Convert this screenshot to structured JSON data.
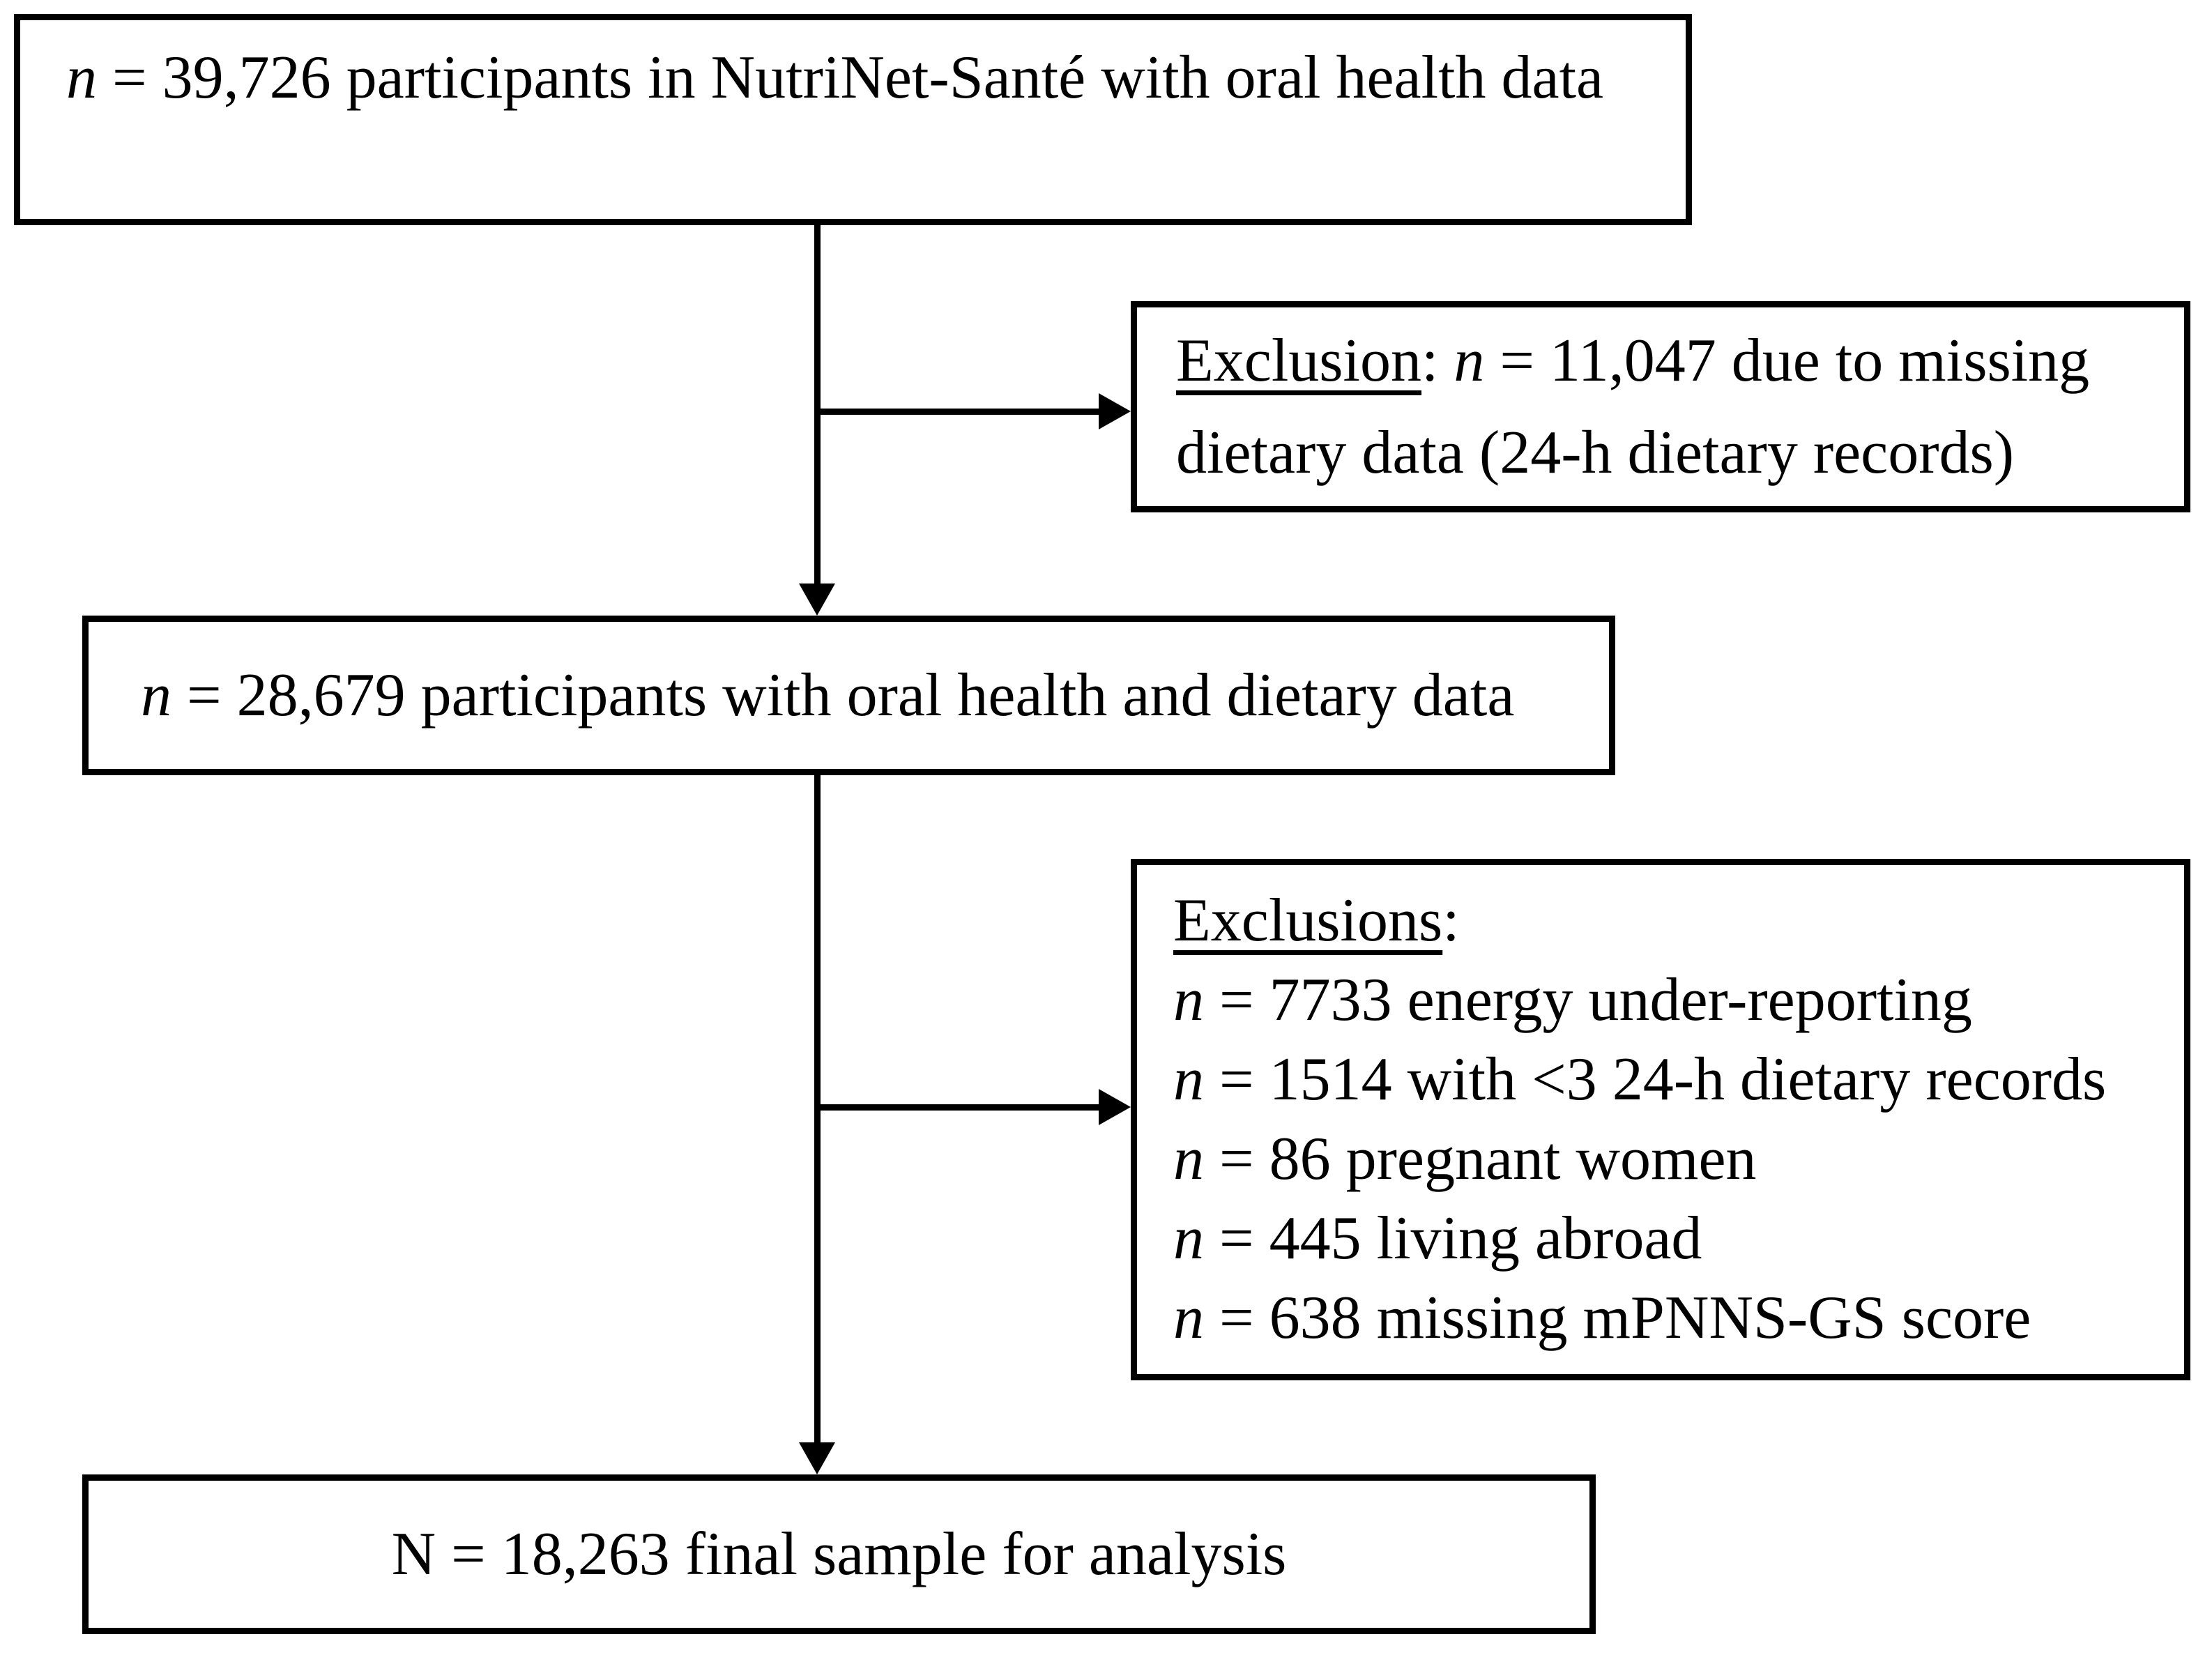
{
  "colors": {
    "ink": "#000000",
    "paper": "#ffffff"
  },
  "boxes": {
    "cohort_initial": {
      "n": "n",
      "text": " = 39,726 participants in NutriNet-Santé with oral health data"
    },
    "exclusion_dietary": {
      "heading": "Exclusion",
      "separator": ": ",
      "n": "n",
      "line1_rest": " = 11,047 due to missing",
      "line2": "dietary data (24-h dietary records)"
    },
    "cohort_with_diet": {
      "n": "n",
      "text": " = 28,679 participants with oral health and dietary data"
    },
    "exclusions_list": {
      "heading": "Exclusions",
      "separator": ":",
      "items": [
        {
          "n": "n",
          "text": " = 7733 energy under-reporting"
        },
        {
          "n": "n",
          "text": " = 1514 with <3 24-h dietary records"
        },
        {
          "n": "n",
          "text": " = 86 pregnant women"
        },
        {
          "n": "n",
          "text": " = 445 living abroad"
        },
        {
          "n": "n",
          "text": " = 638 missing mPNNS-GS score"
        }
      ]
    },
    "final_sample": {
      "n": "N",
      "text": " = 18,263 final sample for analysis"
    }
  }
}
